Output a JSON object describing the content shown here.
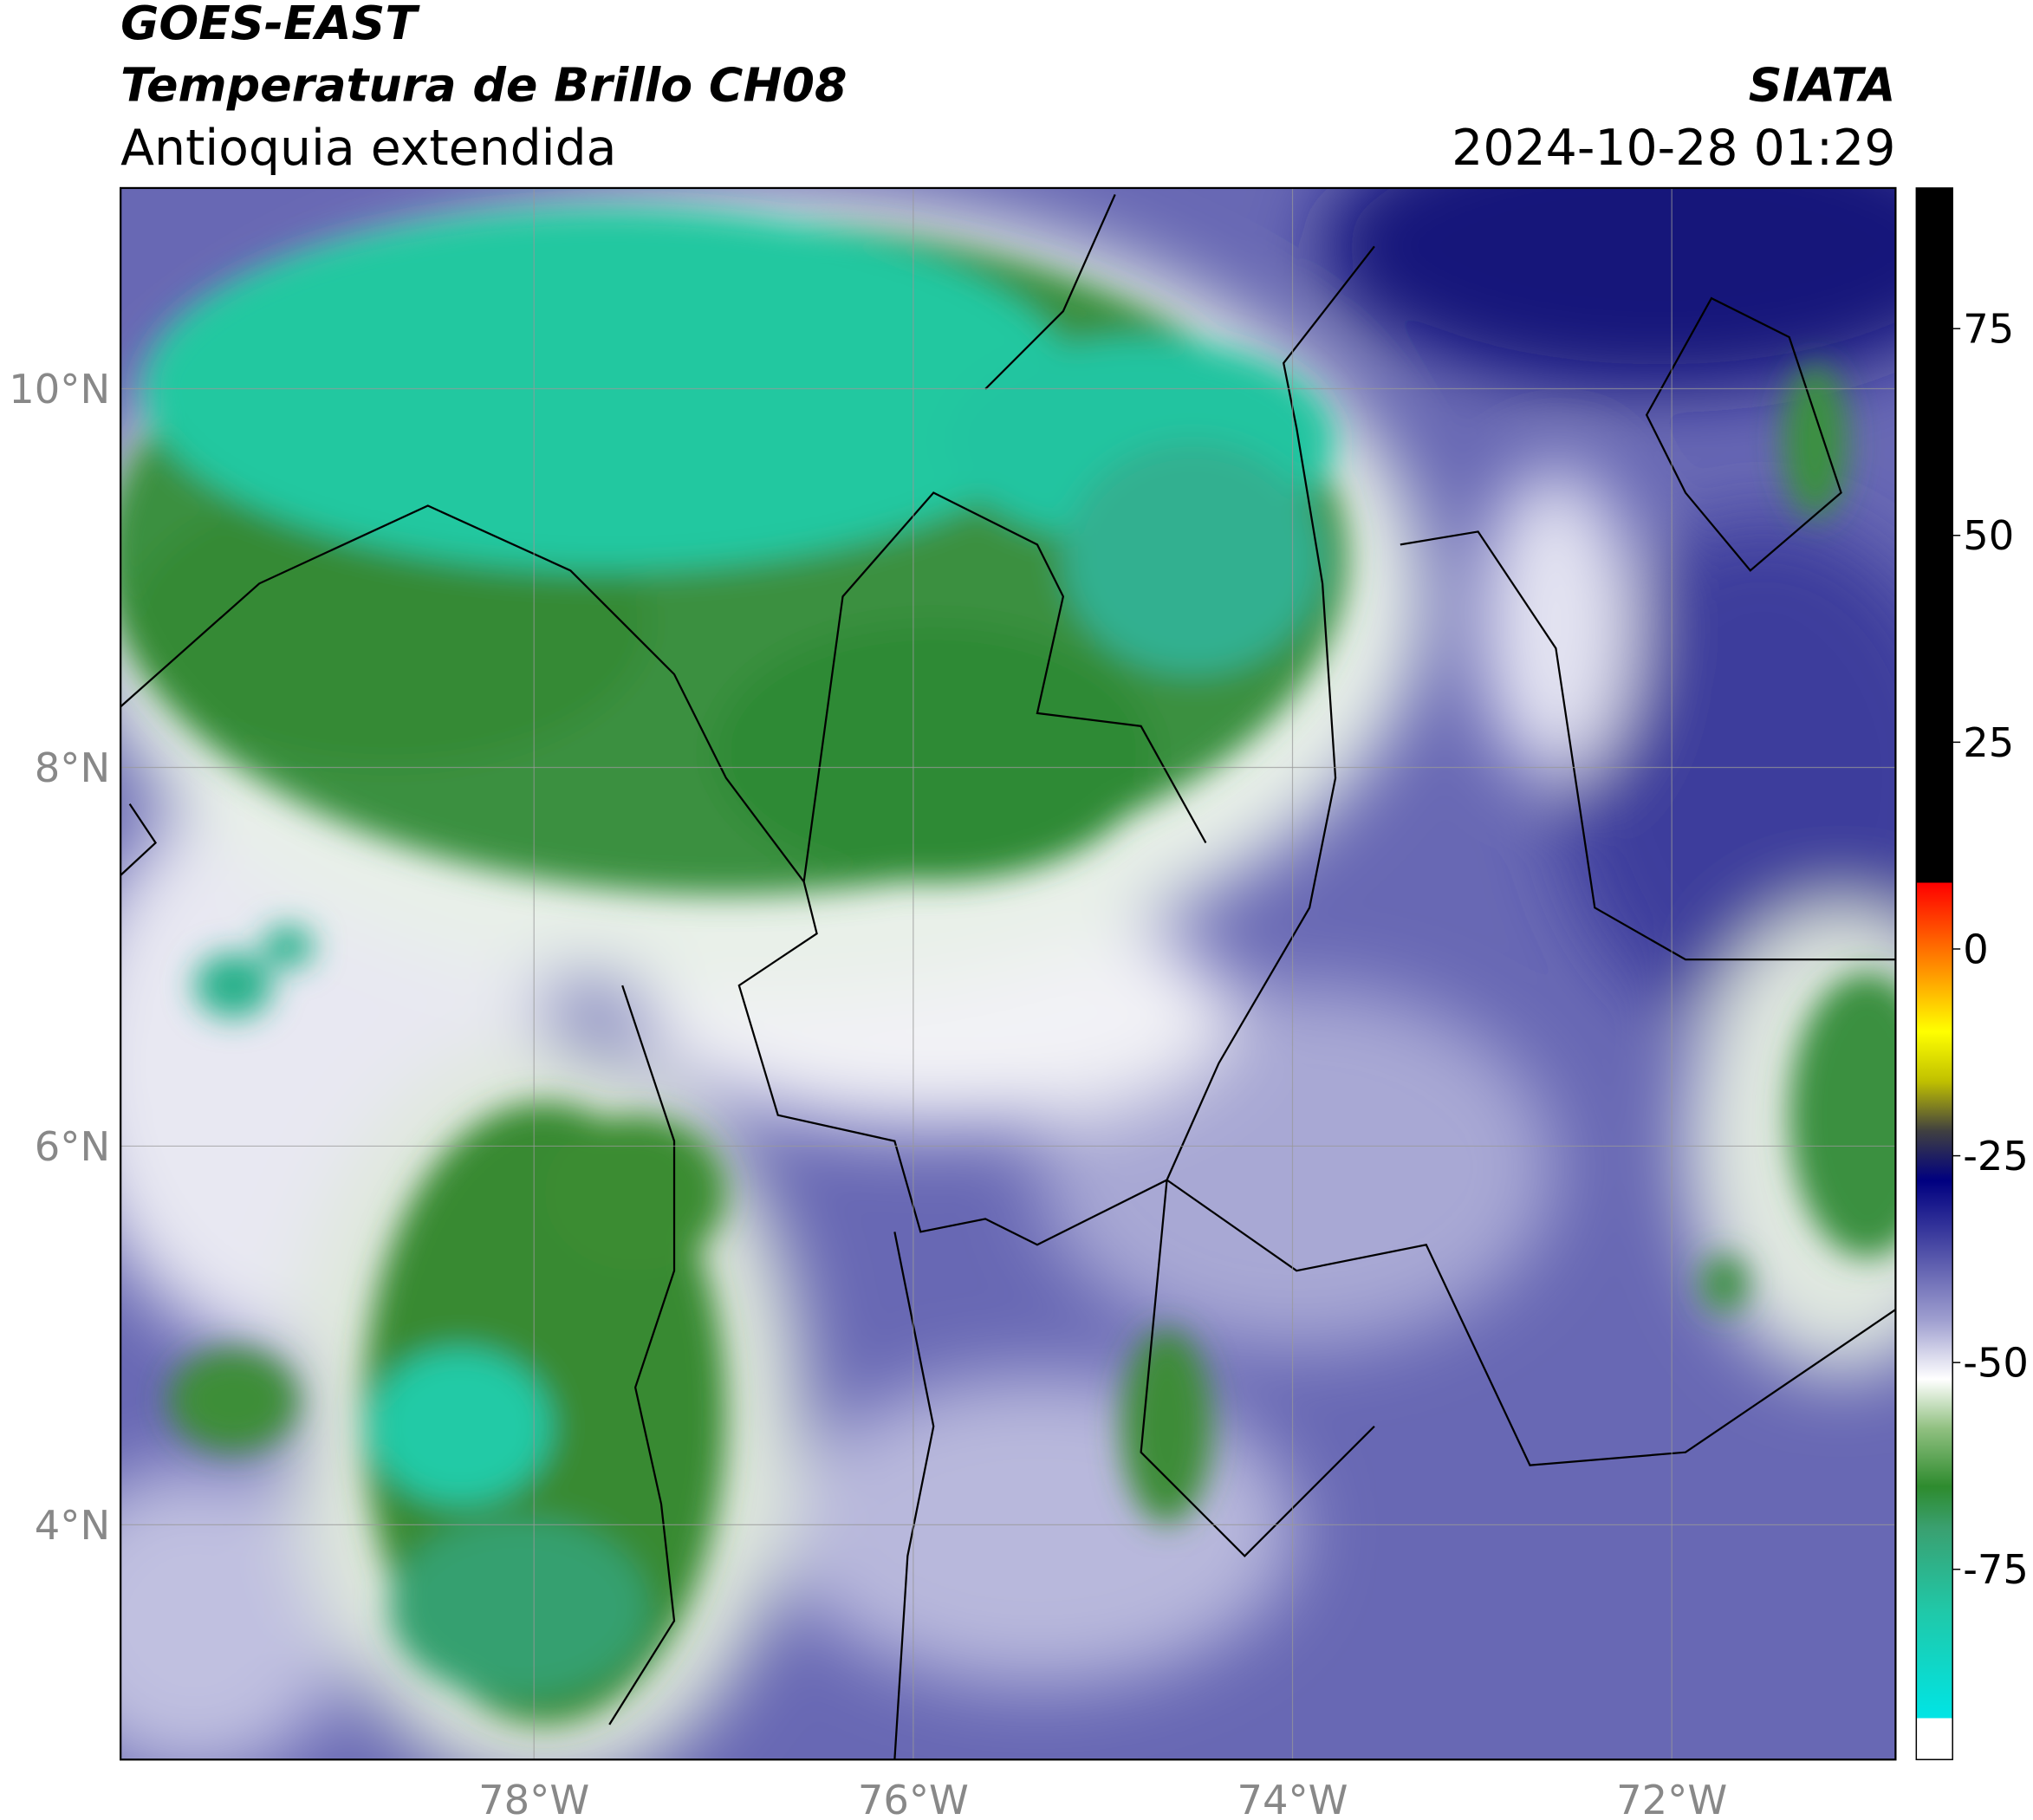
{
  "header": {
    "title": "GOES-EAST",
    "subtitle": "Temperatura de Brillo CH08",
    "region": "Antioquia extendida",
    "source": "SIATA",
    "datetime": "2024-10-28 01:29"
  },
  "map": {
    "xlim": [
      -80.18,
      -70.82
    ],
    "ylim": [
      2.76,
      11.06
    ],
    "xticks": [
      {
        "value": -78,
        "label": "78°W"
      },
      {
        "value": -76,
        "label": "76°W"
      },
      {
        "value": -74,
        "label": "74°W"
      },
      {
        "value": -72,
        "label": "72°W"
      }
    ],
    "yticks": [
      {
        "value": 4,
        "label": "4°N"
      },
      {
        "value": 6,
        "label": "6°N"
      },
      {
        "value": 8,
        "label": "8°N"
      },
      {
        "value": 10,
        "label": "10°N"
      }
    ],
    "grid": true
  },
  "colorbar": {
    "lim": [
      -98,
      92
    ],
    "ticks": [
      -75,
      -50,
      -25,
      0,
      25,
      50,
      75
    ],
    "stops": [
      {
        "value": -98,
        "color": "#ffffff"
      },
      {
        "value": -93,
        "color": "#ffffff"
      },
      {
        "value": -93,
        "color": "#00e5e5"
      },
      {
        "value": -80,
        "color": "#20c8a8"
      },
      {
        "value": -70,
        "color": "#3aa070"
      },
      {
        "value": -65,
        "color": "#2e8b2e"
      },
      {
        "value": -58,
        "color": "#90c080"
      },
      {
        "value": -52,
        "color": "#ffffff"
      },
      {
        "value": -45,
        "color": "#a0a0d0"
      },
      {
        "value": -35,
        "color": "#4040a0"
      },
      {
        "value": -28,
        "color": "#000080"
      },
      {
        "value": -22,
        "color": "#404040"
      },
      {
        "value": -16,
        "color": "#c0c000"
      },
      {
        "value": -10,
        "color": "#ffff00"
      },
      {
        "value": -3,
        "color": "#ff9900"
      },
      {
        "value": 8,
        "color": "#ff0000"
      },
      {
        "value": 8,
        "color": "#000000"
      },
      {
        "value": 92,
        "color": "#000000"
      }
    ]
  }
}
